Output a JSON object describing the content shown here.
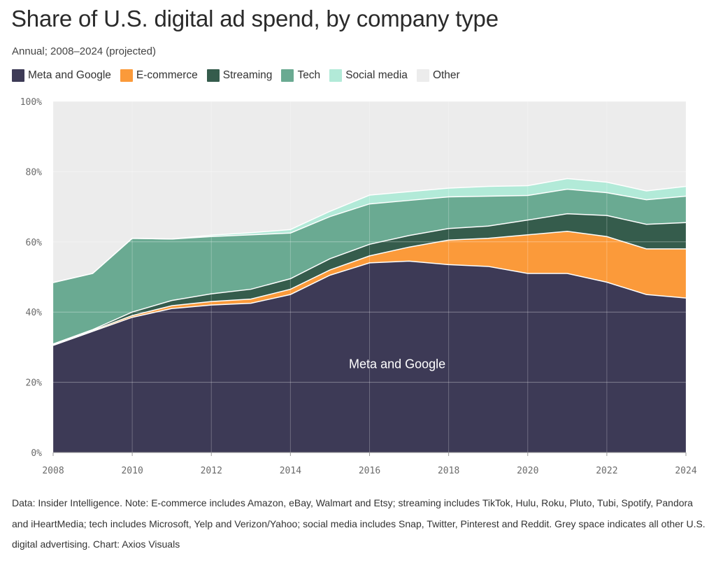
{
  "title": "Share of U.S. digital ad spend, by company type",
  "subtitle": "Annual; 2008–2024 (projected)",
  "footnote": "Data: Insider Intelligence. Note: E-commerce includes Amazon, eBay, Walmart and Etsy; streaming includes TikTok, Hulu, Roku, Pluto, Tubi, Spotify, Pandora and iHeartMedia; tech includes Microsoft, Yelp and Verizon/Yahoo; social media includes Snap, Twitter, Pinterest and Reddit. Grey space indicates all other U.S. digital advertising. Chart: Axios Visuals",
  "chart_data": {
    "type": "area",
    "stacked": true,
    "x": [
      2008,
      2009,
      2010,
      2011,
      2012,
      2013,
      2014,
      2015,
      2016,
      2017,
      2018,
      2019,
      2020,
      2021,
      2022,
      2023,
      2024
    ],
    "xticks": [
      2008,
      2010,
      2012,
      2014,
      2016,
      2018,
      2020,
      2022,
      2024
    ],
    "xtick_labels": [
      "2008",
      "2010",
      "2012",
      "2014",
      "2016",
      "2018",
      "2020",
      "2022",
      "2024"
    ],
    "ylim": [
      0,
      100
    ],
    "yticks": [
      0,
      20,
      40,
      60,
      80,
      100
    ],
    "ytick_labels": [
      "0%",
      "20%",
      "40%",
      "60%",
      "80%",
      "100%"
    ],
    "grid": true,
    "legend_position": "top-left",
    "series": [
      {
        "name": "Meta and Google",
        "color": "#3d3a56",
        "values": [
          30.5,
          34.5,
          38.5,
          41,
          42,
          42.5,
          45,
          50.5,
          54,
          54.5,
          53.5,
          53,
          51,
          51,
          48.5,
          45,
          44
        ]
      },
      {
        "name": "E-commerce",
        "color": "#fb9a3a",
        "values": [
          0.2,
          0.3,
          0.5,
          0.8,
          1,
          1.2,
          1.5,
          1.5,
          2,
          4,
          7,
          8,
          11,
          12,
          13,
          13,
          14
        ]
      },
      {
        "name": "Streaming",
        "color": "#355c4c",
        "values": [
          0.2,
          0.2,
          1,
          1.5,
          2.2,
          2.8,
          3,
          3.2,
          3.3,
          3.3,
          3.3,
          3.5,
          4.2,
          5,
          6,
          7,
          7.5
        ]
      },
      {
        "name": "Tech",
        "color": "#6aaa92",
        "values": [
          17.5,
          16,
          21,
          17.5,
          16.3,
          15.5,
          13,
          12,
          11.5,
          10,
          9,
          8.5,
          7,
          7,
          6.5,
          7,
          7.5
        ]
      },
      {
        "name": "Social media",
        "color": "#b2ead8",
        "values": [
          0,
          0,
          0,
          0,
          0.4,
          0.6,
          1,
          1.5,
          2.5,
          2.5,
          2.5,
          2.8,
          2.8,
          3,
          3,
          2.5,
          2.8
        ]
      },
      {
        "name": "Other",
        "color": "#ececec",
        "values": [
          51.6,
          49,
          39,
          39.2,
          38.1,
          37.4,
          36.5,
          31.3,
          26.7,
          25.7,
          24.7,
          24.2,
          24,
          22,
          23,
          25.5,
          24.2
        ]
      }
    ],
    "annotations": [
      {
        "text": "Meta and Google",
        "x": 2016.7,
        "y": 24
      }
    ]
  }
}
